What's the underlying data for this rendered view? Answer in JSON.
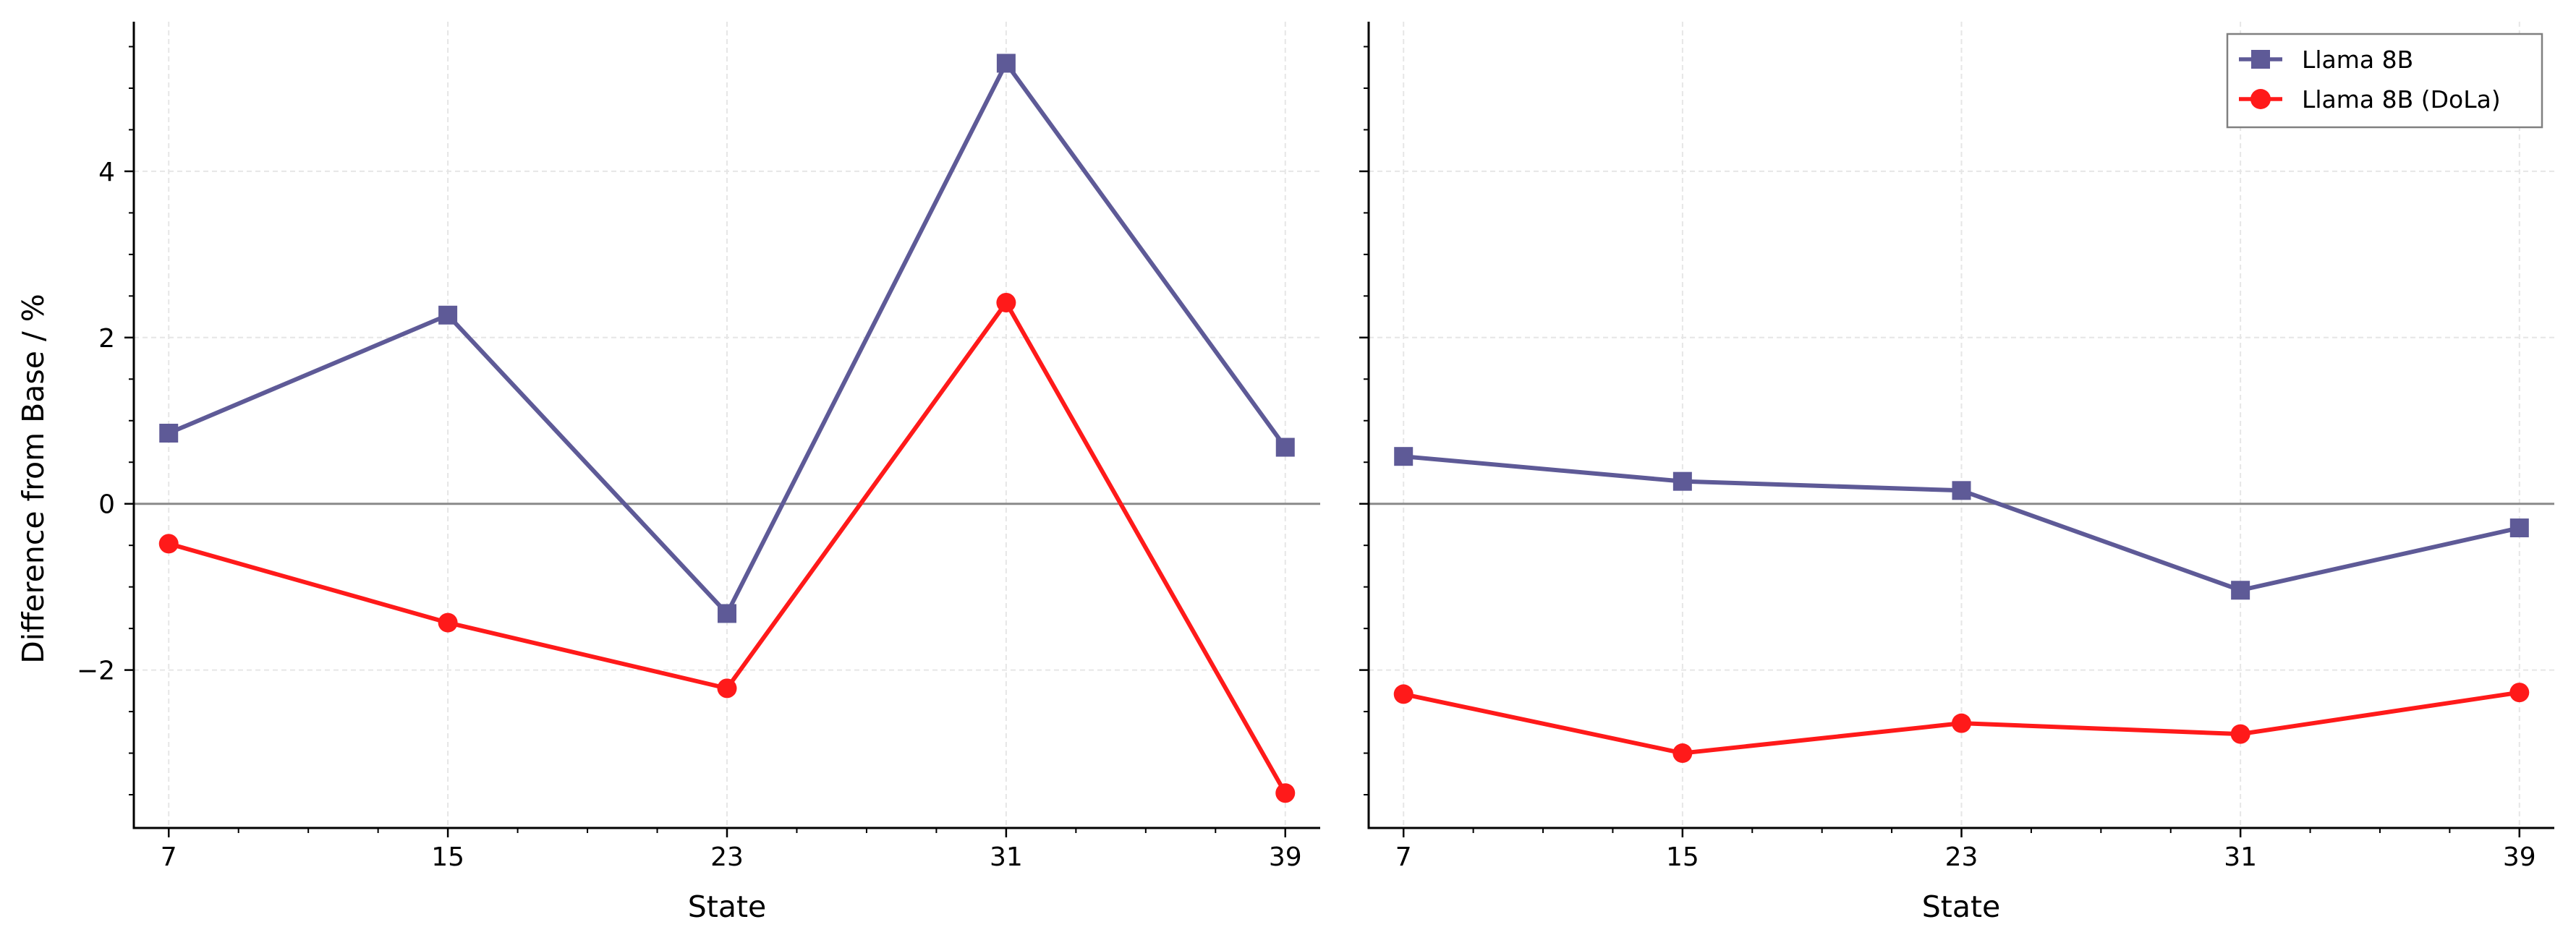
{
  "chart_data": [
    {
      "type": "line",
      "x": [
        7,
        15,
        23,
        31,
        39
      ],
      "xticks": [
        "7",
        "15",
        "23",
        "31",
        "39"
      ],
      "yticks": [
        "−2",
        "0",
        "2",
        "4"
      ],
      "xlabel": "State",
      "ylabel": "Difference from Base / %",
      "xlim": [
        6,
        40
      ],
      "ylim": [
        -3.9,
        5.8
      ],
      "grid": true,
      "zero_line": true,
      "series": [
        {
          "name": "Llama 8B",
          "marker": "square",
          "color": "#5e5a97",
          "values": [
            0.85,
            2.27,
            -1.32,
            5.3,
            0.68
          ]
        },
        {
          "name": "Llama 8B (DoLa)",
          "marker": "circle",
          "color": "#ff1a1a",
          "values": [
            -0.48,
            -1.43,
            -2.22,
            2.42,
            -3.48
          ]
        }
      ]
    },
    {
      "type": "line",
      "x": [
        7,
        15,
        23,
        31,
        39
      ],
      "xticks": [
        "7",
        "15",
        "23",
        "31",
        "39"
      ],
      "xlabel": "State",
      "ylabel": "",
      "xlim": [
        6,
        40
      ],
      "ylim": [
        -3.9,
        5.8
      ],
      "grid": true,
      "zero_line": true,
      "legend": "top-right",
      "series": [
        {
          "name": "Llama 8B",
          "marker": "square",
          "color": "#5e5a97",
          "values": [
            0.57,
            0.27,
            0.16,
            -1.04,
            -0.29
          ]
        },
        {
          "name": "Llama 8B (DoLa)",
          "marker": "circle",
          "color": "#ff1a1a",
          "values": [
            -2.29,
            -3.0,
            -2.64,
            -2.77,
            -2.27
          ]
        }
      ]
    }
  ]
}
